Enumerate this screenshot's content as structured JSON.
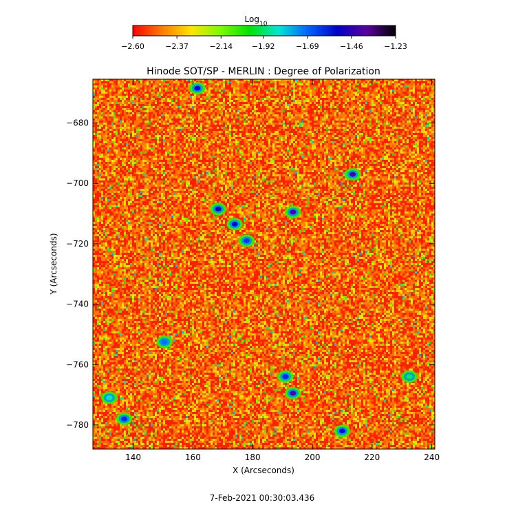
{
  "chart_data": {
    "type": "heatmap",
    "title": "Hinode SOT/SP - MERLIN : Degree of Polarization",
    "xlabel": "X (Arcseconds)",
    "ylabel": "Y (Arcseconds)",
    "xlim": [
      126.5,
      241
    ],
    "ylim": [
      -788,
      -665.5
    ],
    "x_ticks": [
      140,
      160,
      180,
      200,
      220,
      240
    ],
    "x_tick_labels": [
      "140",
      "160",
      "180",
      "200",
      "220",
      "240"
    ],
    "y_ticks": [
      -680,
      -700,
      -720,
      -740,
      -760,
      -780
    ],
    "y_tick_labels": [
      "−680",
      "−700",
      "−720",
      "−740",
      "−760",
      "−780"
    ],
    "colorbar": {
      "title": "Log",
      "title_subscript": "10",
      "range": [
        -2.6,
        -1.23
      ],
      "ticks": [
        -2.6,
        -2.37,
        -2.14,
        -1.92,
        -1.69,
        -1.46,
        -1.23
      ],
      "tick_labels": [
        "−2.60",
        "−2.37",
        "−2.14",
        "−1.92",
        "−1.69",
        "−1.46",
        "−1.23"
      ],
      "colormap": [
        "#ff0000",
        "#ff7a00",
        "#ffe400",
        "#7cfc00",
        "#00e400",
        "#00e6d4",
        "#0064ff",
        "#0000c8",
        "#5a00a0",
        "#000000"
      ]
    },
    "background_level": -2.55,
    "features": [
      {
        "x": 161.5,
        "y": -668.5,
        "level": -1.55
      },
      {
        "x": 213.5,
        "y": -697.0,
        "level": -1.42
      },
      {
        "x": 168.5,
        "y": -708.5,
        "level": -1.52
      },
      {
        "x": 174.0,
        "y": -713.5,
        "level": -1.55
      },
      {
        "x": 193.5,
        "y": -709.5,
        "level": -1.4
      },
      {
        "x": 178.0,
        "y": -719.0,
        "level": -1.62
      },
      {
        "x": 193.5,
        "y": -769.5,
        "level": -1.4
      },
      {
        "x": 191.0,
        "y": -764.0,
        "level": -1.6
      },
      {
        "x": 210.0,
        "y": -782.0,
        "level": -1.55
      },
      {
        "x": 137.0,
        "y": -778.0,
        "level": -1.6
      },
      {
        "x": 150.5,
        "y": -752.5,
        "level": -1.7
      },
      {
        "x": 132.0,
        "y": -771.0,
        "level": -1.85
      },
      {
        "x": 232.5,
        "y": -764.0,
        "level": -1.92
      }
    ]
  },
  "footer": {
    "timestamp": "7-Feb-2021 00:30:03.436"
  }
}
